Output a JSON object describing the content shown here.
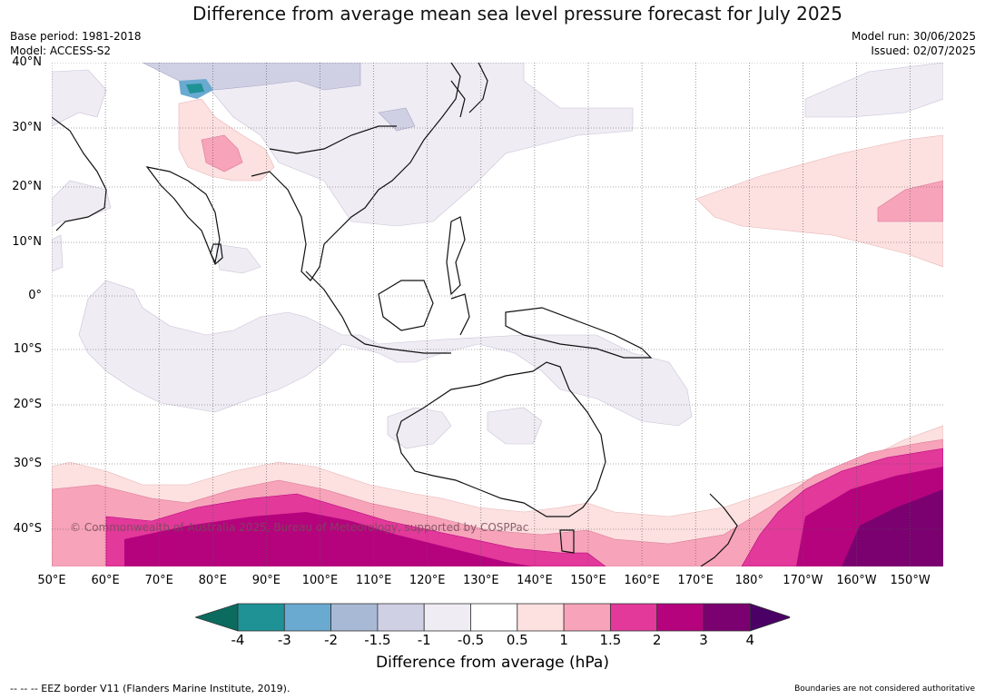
{
  "title": "Difference from average mean sea level pressure forecast for July 2025",
  "meta_left": {
    "base_period": "Base period: 1981-2018",
    "model": "Model: ACCESS-S2"
  },
  "meta_right": {
    "model_run": "Model run: 30/06/2025",
    "issued": "Issued: 02/07/2025"
  },
  "map": {
    "lat_labels": [
      "40°N",
      "30°N",
      "20°N",
      "10°N",
      "0°",
      "10°S",
      "20°S",
      "30°S",
      "40°S"
    ],
    "lon_labels": [
      "50°E",
      "60°E",
      "70°E",
      "80°E",
      "90°E",
      "100°E",
      "110°E",
      "120°E",
      "130°E",
      "140°E",
      "150°E",
      "160°E",
      "170°E",
      "180°",
      "170°W",
      "160°W",
      "150°W"
    ],
    "copyright": "© Commonwealth of Australia 2025, Bureau of Meteorology, supported by COSPPac"
  },
  "colorbar": {
    "ticks": [
      "-4",
      "-3",
      "-2",
      "-1.5",
      "-1",
      "-0.5",
      "0.5",
      "1",
      "1.5",
      "2",
      "3",
      "4"
    ],
    "colors": {
      "below_-4": "#0b6b5e",
      "-4_-3": "#1f9296",
      "-3_-2": "#6aaad0",
      "-2_-1.5": "#a8b9d6",
      "-1.5_-1": "#cfd0e4",
      "-1_-0.5": "#efecf4",
      "-0.5_0.5": "#ffffff",
      "0.5_1": "#fde0e0",
      "1_1.5": "#f7a3ba",
      "1.5_2": "#e2399a",
      "2_3": "#b5037e",
      "3_4": "#7b0170",
      "above_4": "#4b0066"
    },
    "label": "Difference from average (hPa)"
  },
  "footer": {
    "eez_note": "--  --  -- EEZ border V11 (Flanders Marine Institute, 2019).",
    "boundaries_note": "Boundaries are not considered authoritative"
  }
}
